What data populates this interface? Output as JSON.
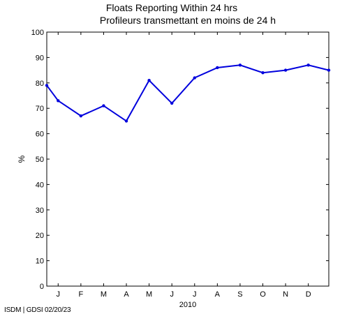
{
  "chart_data": {
    "type": "line",
    "title": "Floats Reporting Within 24 hrs",
    "subtitle": "Profileurs transmettant en moins de 24 h",
    "ylabel": "%",
    "xlabel": "2010",
    "ylim": [
      0,
      100
    ],
    "yticks": [
      0,
      10,
      20,
      30,
      40,
      50,
      60,
      70,
      80,
      90,
      100
    ],
    "xlim": [
      0.5,
      12.9
    ],
    "month_labels": [
      "J",
      "F",
      "M",
      "A",
      "M",
      "J",
      "J",
      "A",
      "S",
      "O",
      "N",
      "D"
    ],
    "grid": false,
    "line_color": "#0000dd",
    "series": [
      {
        "x": [
          0.5,
          1,
          2,
          3,
          4,
          5,
          6,
          7,
          8,
          9,
          10,
          11,
          12,
          12.9
        ],
        "values": [
          79,
          73,
          67,
          71,
          65,
          81,
          72,
          82,
          86,
          87,
          84,
          85,
          87,
          85
        ]
      }
    ]
  },
  "footer": "ISDM | GDSI 02/20/23"
}
